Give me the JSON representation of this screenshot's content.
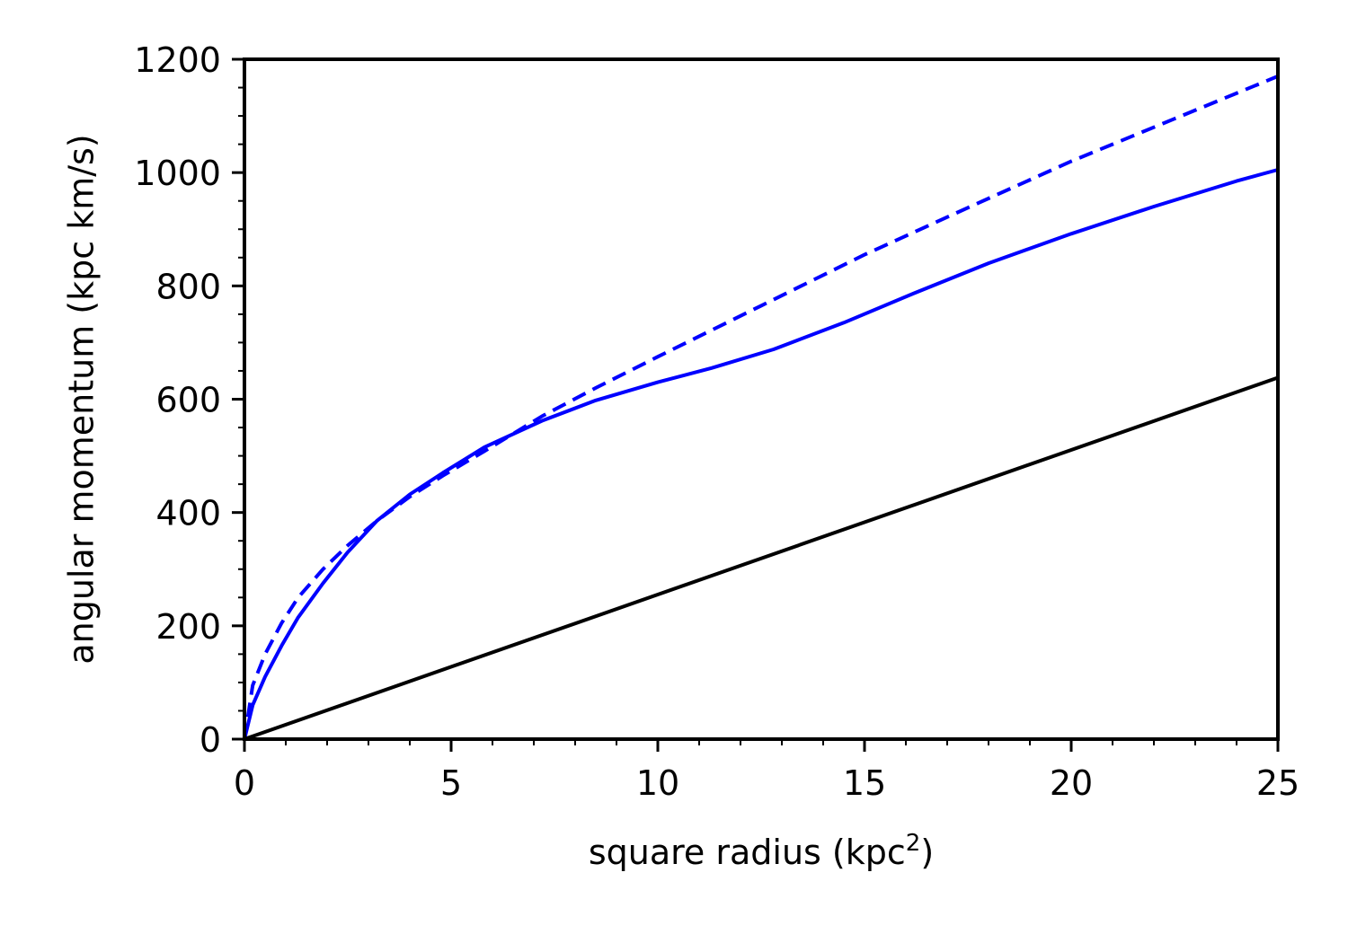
{
  "chart_data": {
    "type": "line",
    "xlabel": "square radius (kpc",
    "xlabel_sup": "2",
    "xlabel_end": ")",
    "ylabel": "angular momentum (kpc km/s)",
    "xlim": [
      0,
      25
    ],
    "ylim": [
      0,
      1200
    ],
    "xticks": [
      0,
      5,
      10,
      15,
      20,
      25
    ],
    "yticks": [
      0,
      200,
      400,
      600,
      800,
      1000,
      1200
    ],
    "xtick_labels": [
      "0",
      "5",
      "10",
      "15",
      "20",
      "25"
    ],
    "ytick_labels": [
      "0",
      "200",
      "400",
      "600",
      "800",
      "1000",
      "1200"
    ],
    "grid": false,
    "series": [
      {
        "style": "solid",
        "color": "#0000ff",
        "x": [
          0,
          0.2,
          0.5,
          0.9,
          1.3,
          1.9,
          2.5,
          3.2,
          4.0,
          4.8,
          5.8,
          7.2,
          8.5,
          10.0,
          11.3,
          12.8,
          14.5,
          16.2,
          18.0,
          20.0,
          22.0,
          24.0,
          25.0
        ],
        "y": [
          0,
          60,
          110,
          165,
          215,
          275,
          330,
          385,
          432,
          470,
          515,
          562,
          598,
          630,
          655,
          688,
          735,
          787,
          840,
          892,
          940,
          985,
          1005
        ]
      },
      {
        "style": "dashed",
        "color": "#0000ff",
        "x": [
          0,
          0.2,
          0.5,
          0.9,
          1.3,
          1.9,
          2.5,
          3.2,
          4.0,
          4.8,
          5.8,
          7.2,
          8.5,
          10.0,
          12.5,
          15.0,
          17.5,
          20.0,
          22.5,
          25.0
        ],
        "y": [
          0,
          95,
          150,
          205,
          250,
          300,
          342,
          385,
          428,
          465,
          508,
          570,
          620,
          675,
          765,
          855,
          938,
          1020,
          1095,
          1170
        ]
      },
      {
        "style": "solid",
        "color": "#000000",
        "x": [
          0,
          25
        ],
        "y": [
          0,
          638
        ]
      }
    ]
  }
}
